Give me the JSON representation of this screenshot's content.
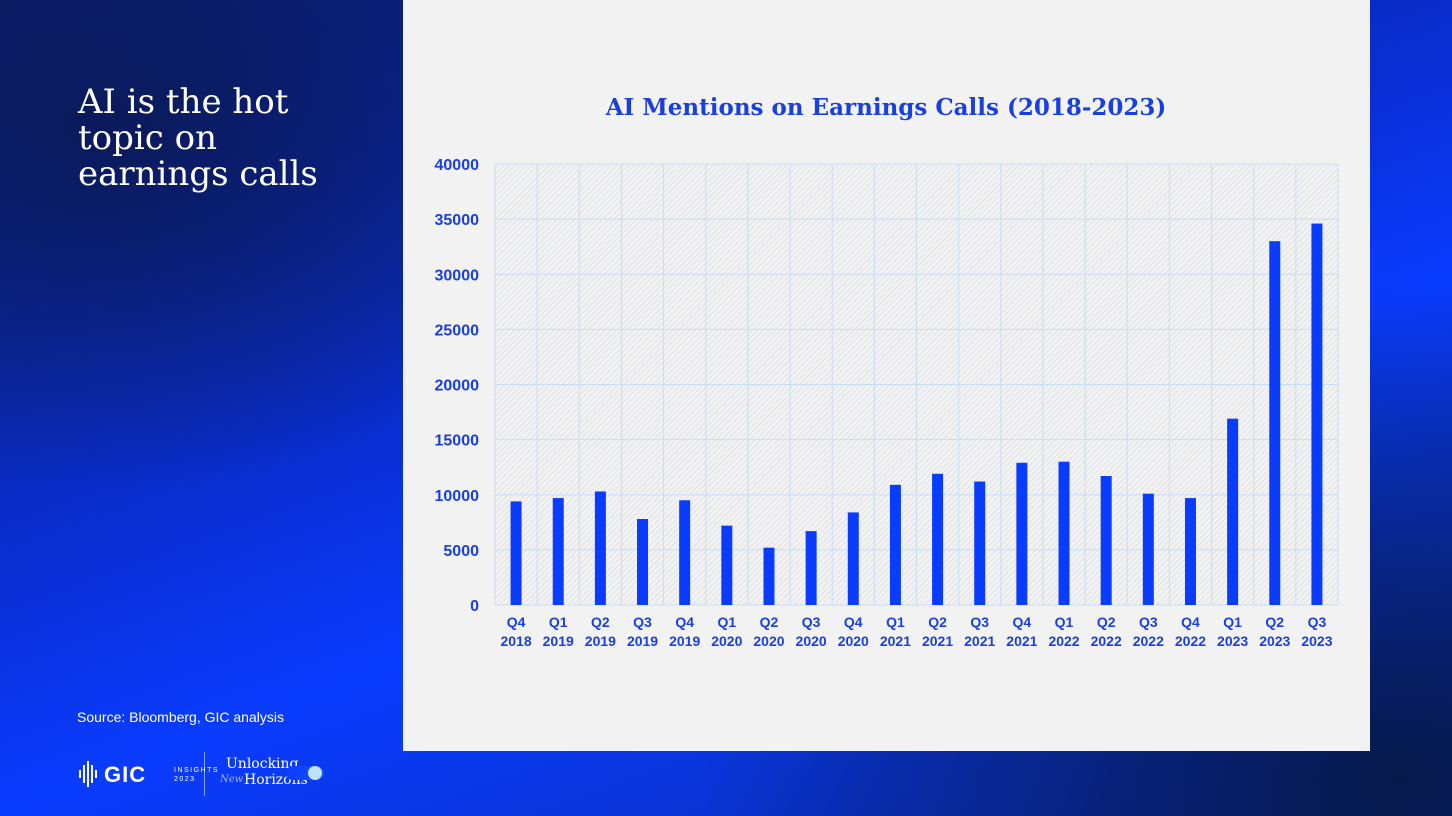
{
  "slide": {
    "title": "AI is the hot topic on earnings calls",
    "source": "Source: Bloomberg, GIC analysis"
  },
  "branding": {
    "logo_text": "GIC",
    "logo_sub_1": "INSIGHTS",
    "logo_sub_2": "2023",
    "tagline_1": "Unlocking",
    "tagline_2": "New",
    "tagline_3": "Horizons"
  },
  "colors": {
    "bar": "#0a3cff",
    "text_accent": "#1a3fe0",
    "panel_bg": "#f2f2f2",
    "grid": "#c9dcf4"
  },
  "chart_data": {
    "type": "bar",
    "title": "AI Mentions on Earnings Calls (2018-2023)",
    "xlabel": "",
    "ylabel": "",
    "ylim": [
      0,
      40000
    ],
    "yticks": [
      0,
      5000,
      10000,
      15000,
      20000,
      25000,
      30000,
      35000,
      40000
    ],
    "grid": true,
    "legend": "none",
    "categories": [
      [
        "Q4",
        "2018"
      ],
      [
        "Q1",
        "2019"
      ],
      [
        "Q2",
        "2019"
      ],
      [
        "Q3",
        "2019"
      ],
      [
        "Q4",
        "2019"
      ],
      [
        "Q1",
        "2020"
      ],
      [
        "Q2",
        "2020"
      ],
      [
        "Q3",
        "2020"
      ],
      [
        "Q4",
        "2020"
      ],
      [
        "Q1",
        "2021"
      ],
      [
        "Q2",
        "2021"
      ],
      [
        "Q3",
        "2021"
      ],
      [
        "Q4",
        "2021"
      ],
      [
        "Q1",
        "2022"
      ],
      [
        "Q2",
        "2022"
      ],
      [
        "Q3",
        "2022"
      ],
      [
        "Q4",
        "2022"
      ],
      [
        "Q1",
        "2023"
      ],
      [
        "Q2",
        "2023"
      ],
      [
        "Q3",
        "2023"
      ]
    ],
    "values": [
      9400,
      9700,
      10300,
      7800,
      9500,
      7200,
      5200,
      6700,
      8400,
      10900,
      11900,
      11200,
      12900,
      13000,
      11700,
      10100,
      9700,
      16900,
      33000,
      34600
    ]
  }
}
